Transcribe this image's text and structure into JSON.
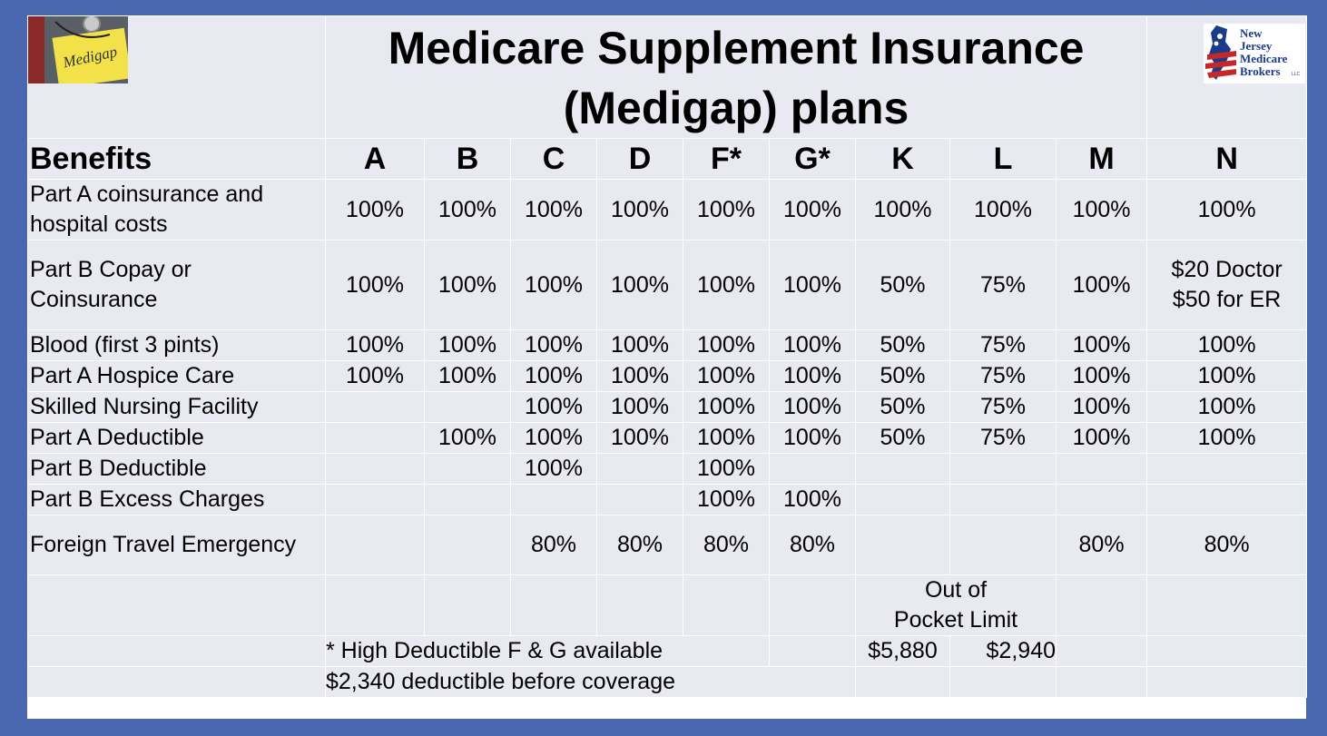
{
  "title": {
    "line1": "Medicare Supplement Insurance",
    "line2": "(Medigap) plans"
  },
  "logos": {
    "medigap_note_text": "Medigap",
    "broker_name_lines": [
      "New",
      "Jersey",
      "Medicare",
      "Brokers"
    ],
    "broker_suffix": "LLC"
  },
  "table": {
    "header": [
      "Benefits",
      "A",
      "B",
      "C",
      "D",
      "F*",
      "G*",
      "K",
      "L",
      "M",
      "N"
    ],
    "rows": [
      {
        "label": "Part A coinsurance and hospital costs",
        "values": [
          "100%",
          "100%",
          "100%",
          "100%",
          "100%",
          "100%",
          "100%",
          "100%",
          "100%",
          "100%"
        ]
      },
      {
        "label": "Part B Copay or Coinsurance",
        "values": [
          "100%",
          "100%",
          "100%",
          "100%",
          "100%",
          "100%",
          "50%",
          "75%",
          "100%",
          ""
        ],
        "n_line1": "$20 Doctor",
        "n_line2": "$50 for ER"
      },
      {
        "label": "Blood (first 3 pints)",
        "values": [
          "100%",
          "100%",
          "100%",
          "100%",
          "100%",
          "100%",
          "50%",
          "75%",
          "100%",
          "100%"
        ]
      },
      {
        "label": "Part A Hospice Care",
        "values": [
          "100%",
          "100%",
          "100%",
          "100%",
          "100%",
          "100%",
          "50%",
          "75%",
          "100%",
          "100%"
        ]
      },
      {
        "label": "Skilled Nursing Facility",
        "values": [
          "",
          "",
          "100%",
          "100%",
          "100%",
          "100%",
          "50%",
          "75%",
          "100%",
          "100%"
        ]
      },
      {
        "label": "Part A Deductible",
        "values": [
          "",
          "100%",
          "100%",
          "100%",
          "100%",
          "100%",
          "50%",
          "75%",
          "100%",
          "100%"
        ]
      },
      {
        "label": "Part B Deductible",
        "values": [
          "",
          "",
          "100%",
          "",
          "100%",
          "",
          "",
          "",
          "",
          ""
        ]
      },
      {
        "label": "Part B Excess Charges",
        "values": [
          "",
          "",
          "",
          "",
          "100%",
          "100%",
          "",
          "",
          "",
          ""
        ]
      },
      {
        "label": "Foreign Travel Emergency",
        "values": [
          "",
          "",
          "80%",
          "80%",
          "80%",
          "80%",
          "",
          "",
          "80%",
          "80%"
        ]
      }
    ],
    "oop_label": "Out of Pocket Limit",
    "oop_k": "$5,880",
    "oop_l": "$2,940",
    "note1": "* High Deductible F & G available",
    "note2": "$2,340 deductible before coverage"
  },
  "colors": {
    "frame": "#4a68b0",
    "cell": "#e8e9f1",
    "flag_red": "#c62828",
    "flag_blue": "#1a3a8a",
    "note_yellow": "#f3e14a"
  }
}
